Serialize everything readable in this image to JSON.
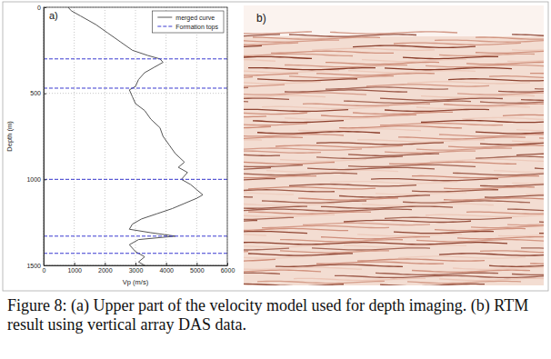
{
  "chart_data": {
    "type": "line",
    "label": "a)",
    "x_label": "Vp (m/s)",
    "y_label": "Depth (m)",
    "xlim": [
      0,
      6000
    ],
    "xticks": [
      0,
      1000,
      2000,
      3000,
      4000,
      5000,
      6000
    ],
    "ylim": [
      1500,
      0
    ],
    "yticks": [
      0,
      500,
      1000,
      1500
    ],
    "grid": true,
    "legend": "top-right",
    "series": [
      {
        "name": "merged curve",
        "type": "line",
        "color": "#555555",
        "line_style": "solid",
        "x": [
          800,
          900,
          1200,
          1700,
          2100,
          2500,
          2900,
          3400,
          3800,
          3900,
          3600,
          3300,
          3100,
          3000,
          2800,
          2900,
          3000,
          3300,
          3500,
          3800,
          3900,
          4100,
          4300,
          4600,
          4400,
          4700,
          4500,
          4800,
          5000,
          5200,
          5000,
          4600,
          4200,
          3700,
          3200,
          2900,
          2800,
          3500,
          4300,
          3100,
          2800,
          3000,
          3300,
          3100,
          3300
        ],
        "values": [
          0,
          20,
          50,
          100,
          150,
          200,
          250,
          280,
          300,
          320,
          350,
          380,
          420,
          460,
          480,
          520,
          560,
          600,
          650,
          700,
          750,
          800,
          850,
          900,
          930,
          960,
          1000,
          1030,
          1060,
          1090,
          1110,
          1140,
          1170,
          1200,
          1230,
          1260,
          1290,
          1310,
          1330,
          1350,
          1380,
          1420,
          1450,
          1480,
          1500
        ]
      },
      {
        "name": "Formation tops",
        "type": "hline",
        "color": "#3a3ad0",
        "line_style": "dashed",
        "values": [
          300,
          470,
          1000,
          1330,
          1430
        ]
      }
    ]
  },
  "panel_b": {
    "label": "b)"
  },
  "caption": "Figure 8: (a) Upper part of the velocity model used for depth imaging. (b) RTM result using vertical array DAS data."
}
